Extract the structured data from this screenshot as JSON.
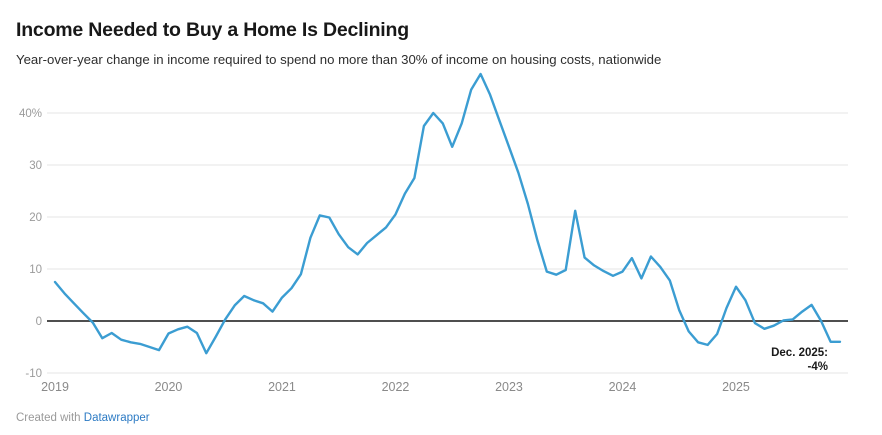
{
  "header": {
    "title": "Income Needed to Buy a Home Is Declining",
    "subtitle": "Year-over-year change in income required to spend no more than 30% of income on housing costs, nationwide"
  },
  "footer": {
    "created_with": "Created with",
    "link_label": "Datawrapper"
  },
  "chart_data": {
    "type": "line",
    "title": "Income Needed to Buy a Home Is Declining",
    "subtitle": "Year-over-year change in income required to spend no more than 30% of income on housing costs, nationwide",
    "x_unit": "month",
    "x_range": [
      "2019-01",
      "2025-12"
    ],
    "year_ticks": [
      "2019",
      "2020",
      "2021",
      "2022",
      "2023",
      "2024",
      "2025"
    ],
    "y_ticks": [
      {
        "value": 40,
        "label": "40%"
      },
      {
        "value": 30,
        "label": "30"
      },
      {
        "value": 20,
        "label": "20"
      },
      {
        "value": 10,
        "label": "10"
      },
      {
        "value": 0,
        "label": "0"
      },
      {
        "value": -10,
        "label": "-10"
      }
    ],
    "ylim": [
      -10,
      48
    ],
    "unit": "%",
    "grid": true,
    "legend": "none",
    "values": [
      7.5,
      5.3,
      3.4,
      1.5,
      -0.3,
      -3.3,
      -2.3,
      -3.6,
      -4.1,
      -4.4,
      -5.0,
      -5.6,
      -2.4,
      -1.6,
      -1.1,
      -2.3,
      -6.2,
      -3.0,
      0.3,
      3.0,
      4.8,
      4.0,
      3.4,
      1.8,
      4.5,
      6.3,
      9.0,
      16.0,
      20.3,
      19.9,
      16.7,
      14.2,
      12.8,
      15.0,
      16.5,
      18.0,
      20.5,
      24.5,
      27.5,
      37.5,
      40.0,
      38.0,
      33.5,
      38.0,
      44.5,
      47.5,
      43.5,
      38.5,
      33.5,
      28.5,
      22.5,
      15.5,
      9.5,
      8.9,
      9.8,
      21.2,
      12.2,
      10.7,
      9.6,
      8.7,
      9.5,
      12.1,
      8.2,
      12.4,
      10.4,
      7.8,
      2.1,
      -2.0,
      -4.1,
      -4.6,
      -2.5,
      2.5,
      6.6,
      4.0,
      -0.4,
      -1.5,
      -0.9,
      0.1,
      0.3,
      1.8,
      3.1,
      0.0,
      -4.0,
      -4.0
    ],
    "annotation": {
      "label": "Dec. 2025:",
      "value_label": "-4%"
    },
    "colors": {
      "line": "#3b9dd2",
      "zero_line": "#4f4f4f",
      "grid": "#e4e4e4",
      "tick_label": "#9b9b9b",
      "year_label": "#8a8a8a",
      "annotation": "#1a1a1a",
      "link": "#2d7bc4"
    }
  }
}
